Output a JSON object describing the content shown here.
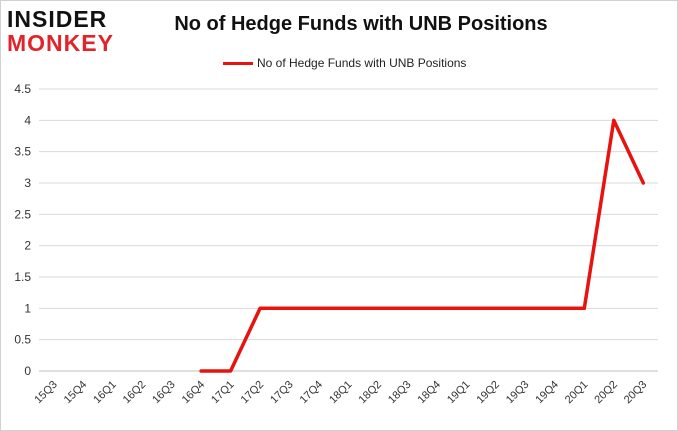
{
  "logo": {
    "line1": "INSIDER",
    "line2": "MONKEY"
  },
  "chart_data": {
    "type": "line",
    "title": "No of Hedge Funds with UNB Positions",
    "xlabel": "",
    "ylabel": "",
    "categories": [
      "15Q3",
      "15Q4",
      "16Q1",
      "16Q2",
      "16Q3",
      "16Q4",
      "17Q1",
      "17Q2",
      "17Q3",
      "17Q4",
      "18Q1",
      "18Q2",
      "18Q3",
      "18Q4",
      "19Q1",
      "19Q2",
      "19Q3",
      "19Q4",
      "20Q1",
      "20Q2",
      "20Q3"
    ],
    "series": [
      {
        "name": "No of Hedge Funds with UNB Positions",
        "color": "#e8130f",
        "values": [
          null,
          null,
          null,
          null,
          null,
          0,
          0,
          1,
          1,
          1,
          1,
          1,
          1,
          1,
          1,
          1,
          1,
          1,
          1,
          4,
          3
        ]
      }
    ],
    "ylim": [
      0,
      4.5
    ],
    "yticks": [
      "0",
      "0.5",
      "1",
      "1.5",
      "2",
      "2.5",
      "3",
      "3.5",
      "4",
      "4.5"
    ],
    "grid": true,
    "legend": "top-center"
  }
}
